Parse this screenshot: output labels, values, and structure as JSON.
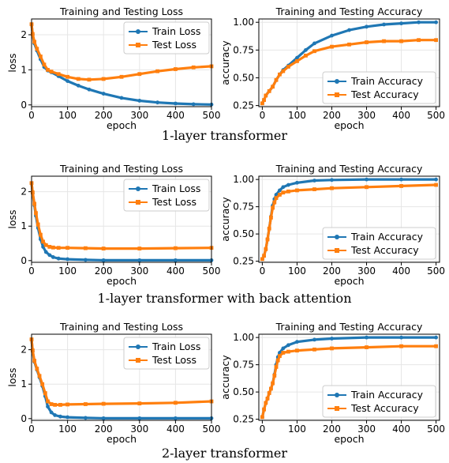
{
  "colors": {
    "train": "#1f77b4",
    "test": "#ff7f0e",
    "grid": "#e6e6e6",
    "axis": "#000000"
  },
  "rows": [
    {
      "caption": "1-layer transformer"
    },
    {
      "caption": "1-layer transformer with back attention"
    },
    {
      "caption": "2-layer transformer"
    }
  ],
  "chart_data": [
    {
      "type": "line",
      "row": 0,
      "kind": "loss",
      "title": "Training and Testing Loss",
      "xlabel": "epoch",
      "ylabel": "loss",
      "xlim": [
        0,
        500
      ],
      "ylim": [
        -0.05,
        2.45
      ],
      "xticks": [
        0,
        100,
        200,
        300,
        400,
        500
      ],
      "yticks": [
        0,
        1,
        2
      ],
      "grid": true,
      "legend_position": "upper-right",
      "series": [
        {
          "name": "Train Loss",
          "x": [
            0,
            3,
            8,
            15,
            25,
            35,
            45,
            55,
            75,
            100,
            130,
            160,
            200,
            250,
            300,
            350,
            400,
            450,
            500
          ],
          "y": [
            2.3,
            2.0,
            1.75,
            1.55,
            1.3,
            1.08,
            0.98,
            0.93,
            0.82,
            0.68,
            0.55,
            0.44,
            0.32,
            0.2,
            0.12,
            0.07,
            0.04,
            0.02,
            0.01
          ]
        },
        {
          "name": "Test Loss",
          "x": [
            0,
            3,
            8,
            15,
            25,
            35,
            45,
            55,
            75,
            100,
            130,
            160,
            200,
            250,
            300,
            350,
            400,
            450,
            500
          ],
          "y": [
            2.3,
            2.02,
            1.8,
            1.6,
            1.38,
            1.15,
            1.0,
            0.95,
            0.88,
            0.8,
            0.74,
            0.72,
            0.74,
            0.8,
            0.88,
            0.96,
            1.02,
            1.07,
            1.1
          ]
        }
      ]
    },
    {
      "type": "line",
      "row": 0,
      "kind": "accuracy",
      "title": "Training and Testing Accuracy",
      "xlabel": "epoch",
      "ylabel": "accuracy",
      "xlim": [
        -10,
        510
      ],
      "ylim": [
        0.24,
        1.03
      ],
      "xticks": [
        0,
        100,
        200,
        300,
        400,
        500
      ],
      "yticks": [
        0.25,
        0.5,
        0.75,
        1.0
      ],
      "grid": true,
      "legend_position": "lower-right",
      "series": [
        {
          "name": "Train Accuracy",
          "x": [
            0,
            5,
            10,
            20,
            30,
            40,
            50,
            60,
            75,
            100,
            125,
            150,
            200,
            250,
            300,
            350,
            400,
            450,
            500
          ],
          "y": [
            0.27,
            0.3,
            0.34,
            0.38,
            0.42,
            0.48,
            0.53,
            0.57,
            0.61,
            0.68,
            0.75,
            0.81,
            0.88,
            0.93,
            0.96,
            0.98,
            0.99,
            1.0,
            1.0
          ]
        },
        {
          "name": "Test Accuracy",
          "x": [
            0,
            5,
            10,
            20,
            30,
            40,
            50,
            60,
            75,
            100,
            125,
            150,
            200,
            250,
            300,
            350,
            400,
            450,
            500
          ],
          "y": [
            0.27,
            0.3,
            0.34,
            0.38,
            0.42,
            0.48,
            0.53,
            0.56,
            0.6,
            0.65,
            0.7,
            0.74,
            0.78,
            0.8,
            0.82,
            0.83,
            0.83,
            0.84,
            0.84
          ]
        }
      ]
    },
    {
      "type": "line",
      "row": 1,
      "kind": "loss",
      "title": "Training and Testing Loss",
      "xlabel": "epoch",
      "ylabel": "loss",
      "xlim": [
        0,
        500
      ],
      "ylim": [
        -0.05,
        2.45
      ],
      "xticks": [
        0,
        100,
        200,
        300,
        400,
        500
      ],
      "yticks": [
        0,
        1,
        2
      ],
      "grid": true,
      "legend_position": "upper-right",
      "series": [
        {
          "name": "Train Loss",
          "x": [
            0,
            3,
            8,
            12,
            18,
            25,
            32,
            40,
            50,
            60,
            75,
            100,
            150,
            200,
            300,
            400,
            500
          ],
          "y": [
            2.25,
            1.95,
            1.6,
            1.3,
            0.95,
            0.62,
            0.4,
            0.25,
            0.16,
            0.1,
            0.06,
            0.04,
            0.02,
            0.01,
            0.01,
            0.01,
            0.01
          ]
        },
        {
          "name": "Test Loss",
          "x": [
            0,
            3,
            8,
            12,
            18,
            25,
            32,
            40,
            50,
            60,
            75,
            100,
            150,
            200,
            300,
            400,
            500
          ],
          "y": [
            2.25,
            1.98,
            1.65,
            1.38,
            1.05,
            0.75,
            0.55,
            0.45,
            0.4,
            0.38,
            0.37,
            0.37,
            0.36,
            0.35,
            0.35,
            0.36,
            0.37
          ]
        }
      ]
    },
    {
      "type": "line",
      "row": 1,
      "kind": "accuracy",
      "title": "Training and Testing Accuracy",
      "xlabel": "epoch",
      "ylabel": "accuracy",
      "xlim": [
        -10,
        510
      ],
      "ylim": [
        0.24,
        1.03
      ],
      "xticks": [
        0,
        100,
        200,
        300,
        400,
        500
      ],
      "yticks": [
        0.25,
        0.5,
        0.75,
        1.0
      ],
      "grid": true,
      "legend_position": "lower-right",
      "series": [
        {
          "name": "Train Accuracy",
          "x": [
            0,
            5,
            10,
            15,
            20,
            25,
            30,
            35,
            40,
            50,
            60,
            75,
            100,
            150,
            200,
            300,
            400,
            500
          ],
          "y": [
            0.27,
            0.3,
            0.36,
            0.45,
            0.55,
            0.66,
            0.76,
            0.82,
            0.86,
            0.9,
            0.93,
            0.95,
            0.97,
            0.99,
            0.995,
            1.0,
            1.0,
            1.0
          ]
        },
        {
          "name": "Test Accuracy",
          "x": [
            0,
            5,
            10,
            15,
            20,
            25,
            30,
            35,
            40,
            50,
            60,
            75,
            100,
            150,
            200,
            300,
            400,
            500
          ],
          "y": [
            0.27,
            0.3,
            0.36,
            0.45,
            0.55,
            0.65,
            0.74,
            0.79,
            0.83,
            0.86,
            0.88,
            0.89,
            0.9,
            0.91,
            0.92,
            0.93,
            0.94,
            0.95
          ]
        }
      ]
    },
    {
      "type": "line",
      "row": 2,
      "kind": "loss",
      "title": "Training and Testing Loss",
      "xlabel": "epoch",
      "ylabel": "loss",
      "xlim": [
        0,
        500
      ],
      "ylim": [
        -0.05,
        2.45
      ],
      "xticks": [
        0,
        100,
        200,
        300,
        400,
        500
      ],
      "yticks": [
        0,
        1,
        2
      ],
      "grid": true,
      "legend_position": "upper-right",
      "series": [
        {
          "name": "Train Loss",
          "x": [
            0,
            3,
            8,
            15,
            22,
            30,
            38,
            45,
            55,
            65,
            80,
            100,
            150,
            200,
            300,
            400,
            500
          ],
          "y": [
            2.3,
            1.95,
            1.65,
            1.42,
            1.2,
            0.95,
            0.65,
            0.35,
            0.18,
            0.1,
            0.06,
            0.04,
            0.02,
            0.01,
            0.01,
            0.01,
            0.01
          ]
        },
        {
          "name": "Test Loss",
          "x": [
            0,
            3,
            8,
            15,
            22,
            30,
            38,
            45,
            55,
            65,
            80,
            100,
            150,
            200,
            300,
            400,
            500
          ],
          "y": [
            2.3,
            1.98,
            1.68,
            1.45,
            1.24,
            1.0,
            0.74,
            0.5,
            0.42,
            0.4,
            0.4,
            0.41,
            0.42,
            0.43,
            0.44,
            0.46,
            0.5
          ]
        }
      ]
    },
    {
      "type": "line",
      "row": 2,
      "kind": "accuracy",
      "title": "Training and Testing Accuracy",
      "xlabel": "epoch",
      "ylabel": "accuracy",
      "xlim": [
        -10,
        510
      ],
      "ylim": [
        0.24,
        1.03
      ],
      "xticks": [
        0,
        100,
        200,
        300,
        400,
        500
      ],
      "yticks": [
        0.25,
        0.5,
        0.75,
        1.0
      ],
      "grid": true,
      "legend_position": "lower-right",
      "series": [
        {
          "name": "Train Accuracy",
          "x": [
            0,
            5,
            10,
            15,
            20,
            25,
            30,
            35,
            40,
            45,
            50,
            60,
            75,
            100,
            150,
            200,
            300,
            400,
            500
          ],
          "y": [
            0.27,
            0.34,
            0.4,
            0.44,
            0.49,
            0.53,
            0.58,
            0.66,
            0.75,
            0.82,
            0.86,
            0.9,
            0.93,
            0.96,
            0.98,
            0.99,
            1.0,
            1.0,
            1.0
          ]
        },
        {
          "name": "Test Accuracy",
          "x": [
            0,
            5,
            10,
            15,
            20,
            25,
            30,
            35,
            40,
            45,
            50,
            60,
            75,
            100,
            150,
            200,
            300,
            400,
            500
          ],
          "y": [
            0.27,
            0.34,
            0.4,
            0.44,
            0.49,
            0.53,
            0.58,
            0.65,
            0.73,
            0.79,
            0.83,
            0.86,
            0.87,
            0.88,
            0.89,
            0.9,
            0.91,
            0.92,
            0.92
          ]
        }
      ]
    }
  ]
}
